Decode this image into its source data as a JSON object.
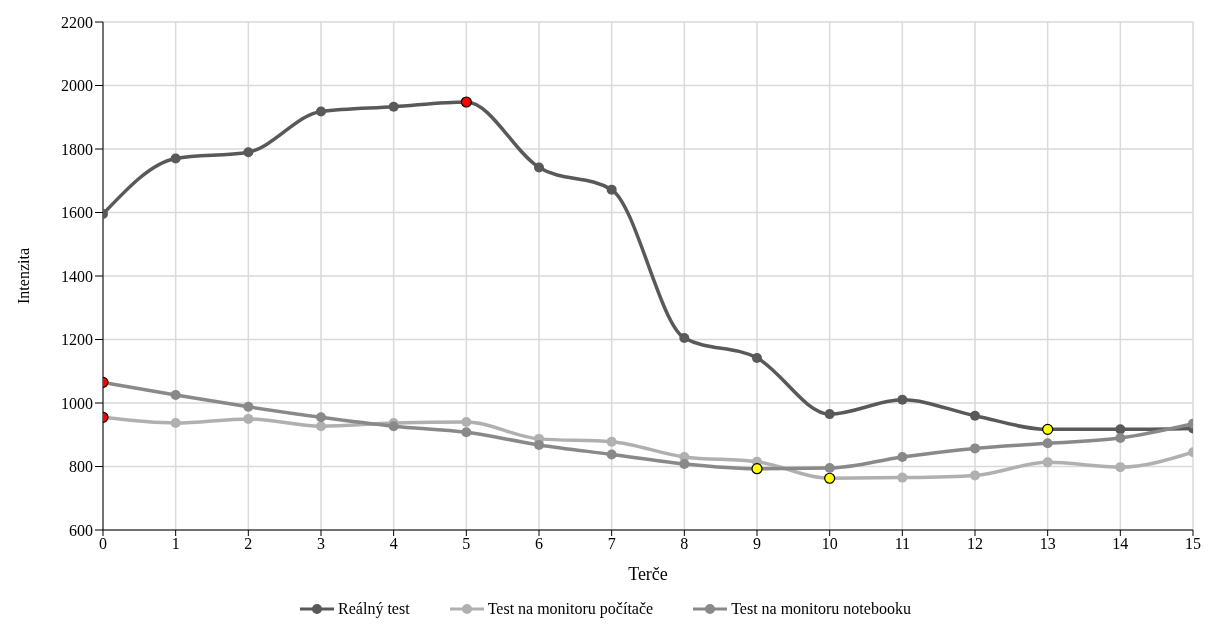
{
  "chart_data": {
    "type": "line",
    "xlabel": "Terče",
    "ylabel": "Intenzita",
    "x": [
      0,
      1,
      2,
      3,
      4,
      5,
      6,
      7,
      8,
      9,
      10,
      11,
      12,
      13,
      14,
      15
    ],
    "xlim": [
      0,
      15
    ],
    "xticks": [
      0,
      1,
      2,
      3,
      4,
      5,
      6,
      7,
      8,
      9,
      10,
      11,
      12,
      13,
      14,
      15
    ],
    "ylim": [
      600,
      2200
    ],
    "yticks": [
      600,
      800,
      1000,
      1200,
      1400,
      1600,
      1800,
      2000,
      2200
    ],
    "grid": true,
    "legend": "bottom",
    "marker": "circle",
    "line_style": "solid",
    "series": [
      {
        "name": "Reálný test",
        "color": "#595959",
        "values": [
          1595,
          1770,
          1790,
          1918,
          1933,
          1948,
          1742,
          1672,
          1205,
          1142,
          965,
          1010,
          960,
          917,
          917,
          920
        ],
        "colors": [
          "#595959",
          "#595959",
          "#595959",
          "#595959",
          "#595959",
          "#ff0000",
          "#595959",
          "#595959",
          "#595959",
          "#595959",
          "#595959",
          "#595959",
          "#595959",
          "#ffff00",
          "#595959",
          "#595959"
        ]
      },
      {
        "name": "Test na monitoru počítače",
        "color": "#b0b0b0",
        "values": [
          955,
          937,
          950,
          927,
          937,
          940,
          887,
          878,
          830,
          815,
          763,
          765,
          772,
          813,
          798,
          845
        ],
        "colors": [
          "#ff0000",
          "#b0b0b0",
          "#b0b0b0",
          "#b0b0b0",
          "#b0b0b0",
          "#b0b0b0",
          "#b0b0b0",
          "#b0b0b0",
          "#b0b0b0",
          "#b0b0b0",
          "#ffff00",
          "#b0b0b0",
          "#b0b0b0",
          "#b0b0b0",
          "#b0b0b0",
          "#b0b0b0"
        ]
      },
      {
        "name": "Test na monitoru notebooku",
        "color": "#898989",
        "values": [
          1065,
          1025,
          988,
          955,
          927,
          908,
          868,
          838,
          808,
          793,
          795,
          830,
          857,
          873,
          890,
          935
        ],
        "colors": [
          "#ff0000",
          "#898989",
          "#898989",
          "#898989",
          "#898989",
          "#898989",
          "#898989",
          "#898989",
          "#898989",
          "#ffff00",
          "#898989",
          "#898989",
          "#898989",
          "#898989",
          "#898989",
          "#898989"
        ]
      }
    ]
  }
}
